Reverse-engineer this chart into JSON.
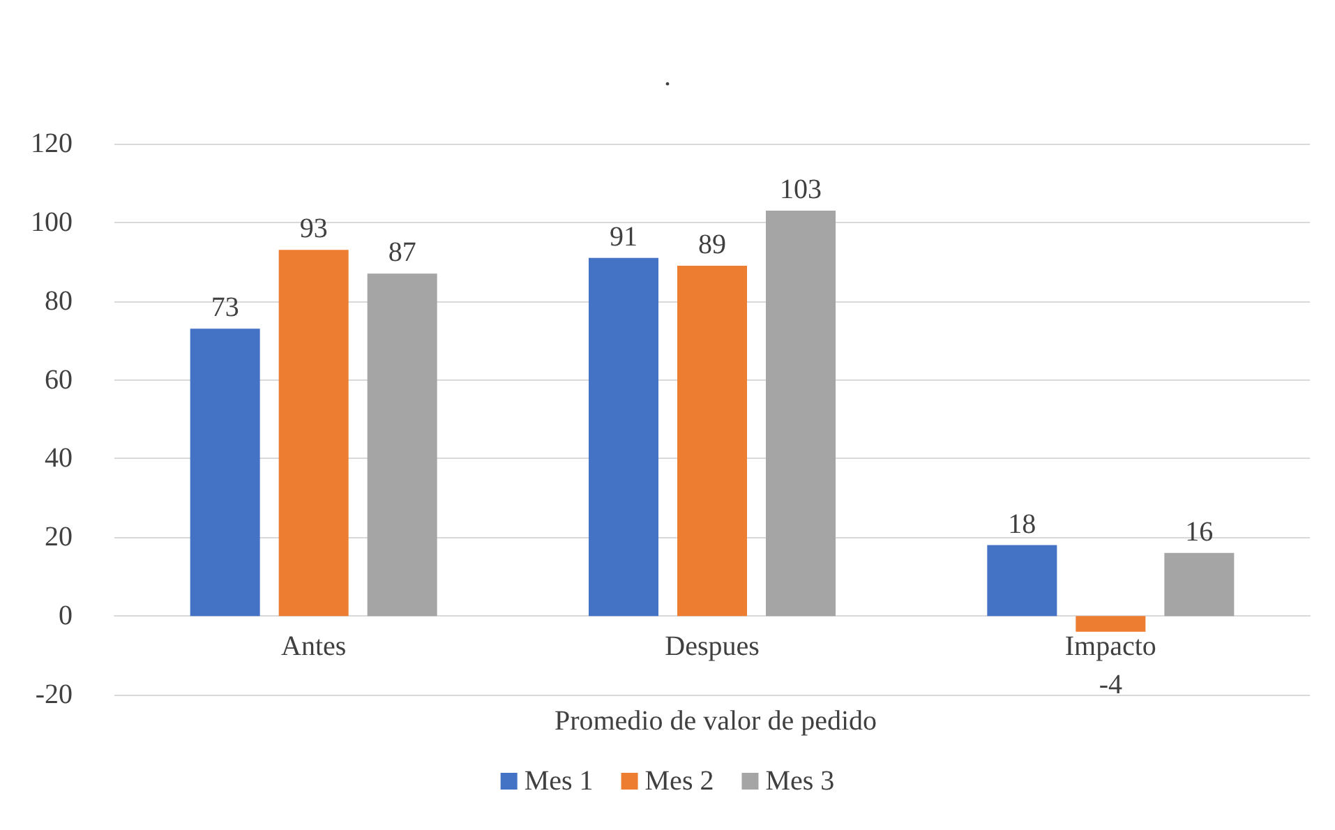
{
  "chart_data": {
    "type": "bar",
    "title": ".",
    "xlabel": "Promedio de valor de pedido",
    "categories": [
      "Antes",
      "Despues",
      "Impacto"
    ],
    "series": [
      {
        "name": "Mes 1",
        "color": "#4472c4",
        "values": [
          73,
          91,
          18
        ]
      },
      {
        "name": "Mes 2",
        "color": "#ed7d31",
        "values": [
          93,
          89,
          -4
        ]
      },
      {
        "name": "Mes 3",
        "color": "#a5a5a5",
        "values": [
          87,
          103,
          16
        ]
      }
    ],
    "ylim": [
      -20,
      120
    ],
    "yticks": [
      -20,
      0,
      20,
      40,
      60,
      80,
      100,
      120
    ],
    "grid": "y",
    "legend": "bottom",
    "data_labels": true
  }
}
